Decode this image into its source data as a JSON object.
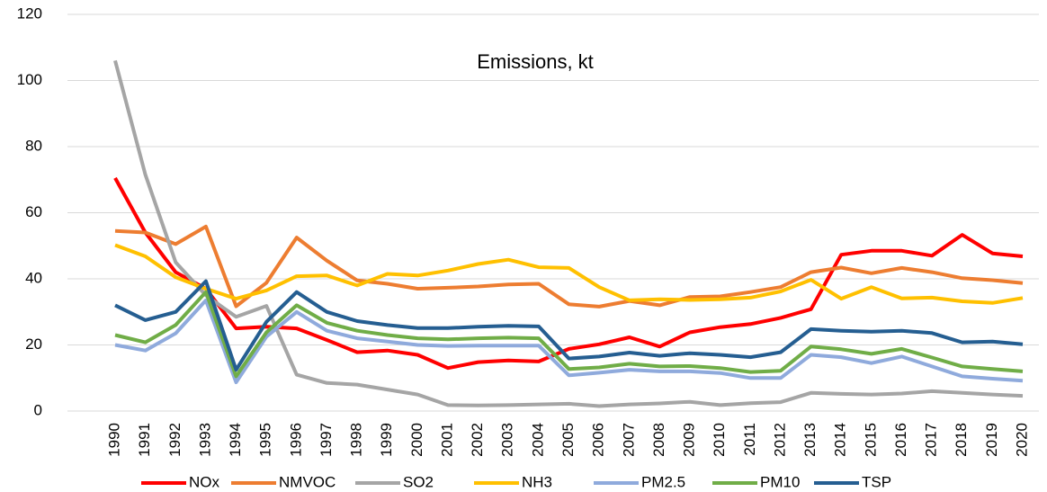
{
  "chart_data": {
    "type": "line",
    "title": "Emissions, kt",
    "categories": [
      "1990",
      "1991",
      "1992",
      "1993",
      "1994",
      "1995",
      "1996",
      "1997",
      "1998",
      "1999",
      "2000",
      "2001",
      "2002",
      "2003",
      "2004",
      "2005",
      "2006",
      "2007",
      "2008",
      "2009",
      "2010",
      "2011",
      "2012",
      "2013",
      "2014",
      "2015",
      "2016",
      "2017",
      "2018",
      "2019",
      "2020"
    ],
    "series": [
      {
        "name": "NOx",
        "color": "#ff0000",
        "values": [
          70.5,
          54,
          42,
          37,
          25,
          25.5,
          25,
          21.5,
          17.8,
          18.3,
          17,
          13,
          14.8,
          15.3,
          15,
          18.8,
          20.2,
          22.3,
          19.5,
          23.8,
          25.4,
          26.3,
          28.2,
          30.8,
          47.3,
          48.5,
          48.5,
          47,
          53.3,
          47.7,
          46.8
        ]
      },
      {
        "name": "NMVOC",
        "color": "#ed7d31",
        "values": [
          54.5,
          54,
          50.5,
          55.8,
          31.7,
          38.8,
          52.5,
          45.5,
          39.5,
          38.5,
          37,
          37.3,
          37.7,
          38.3,
          38.5,
          32.3,
          31.6,
          33.3,
          32,
          34.5,
          34.7,
          36,
          37.5,
          42,
          43.4,
          41.7,
          43.3,
          42,
          40.2,
          39.6,
          38.7
        ]
      },
      {
        "name": "SO2",
        "color": "#a5a5a5",
        "values": [
          106,
          71.5,
          45,
          35,
          28.5,
          31.8,
          11,
          8.5,
          8,
          6.5,
          5,
          1.8,
          1.7,
          1.8,
          2,
          2.2,
          1.5,
          2,
          2.3,
          2.8,
          1.8,
          2.4,
          2.7,
          5.5,
          5.2,
          5,
          5.3,
          6,
          5.5,
          5,
          4.6
        ]
      },
      {
        "name": "NH3",
        "color": "#ffc000",
        "values": [
          50.2,
          46.8,
          40.5,
          37,
          34,
          36.5,
          40.8,
          41,
          38,
          41.5,
          41,
          42.5,
          44.5,
          45.8,
          43.5,
          43.3,
          37.5,
          33.5,
          33.8,
          33.6,
          33.8,
          34.3,
          36.2,
          39.7,
          34,
          37.5,
          34.1,
          34.3,
          33.2,
          32.7,
          34.2
        ]
      },
      {
        "name": "PM2.5",
        "color": "#8faadc",
        "values": [
          20,
          18.3,
          23.5,
          33.5,
          8.7,
          22.5,
          30,
          24.3,
          22,
          21,
          20,
          19.7,
          19.8,
          19.8,
          19.8,
          10.8,
          11.6,
          12.5,
          12,
          12,
          11.5,
          10,
          10,
          17,
          16.3,
          14.5,
          16.5,
          13.5,
          10.5,
          9.8,
          9.2
        ]
      },
      {
        "name": "PM10",
        "color": "#70ad47",
        "values": [
          23,
          20.8,
          26,
          36,
          10.5,
          23.8,
          32,
          26.7,
          24.3,
          23,
          22,
          21.7,
          22,
          22.2,
          22,
          12.7,
          13.2,
          14.3,
          13.5,
          13.6,
          13,
          11.8,
          12.2,
          19.5,
          18.7,
          17.3,
          18.8,
          16.2,
          13.5,
          12.7,
          12
        ]
      },
      {
        "name": "TSP",
        "color": "#255e91",
        "values": [
          32,
          27.5,
          30,
          39.3,
          12.5,
          27,
          36,
          30,
          27.2,
          26,
          25.1,
          25.1,
          25.5,
          25.8,
          25.6,
          15.9,
          16.5,
          17.7,
          16.7,
          17.5,
          17,
          16.3,
          17.8,
          24.8,
          24.3,
          24,
          24.3,
          23.6,
          20.8,
          21,
          20.2
        ]
      }
    ],
    "ylim": [
      0,
      120
    ],
    "yticks": [
      0,
      20,
      40,
      60,
      80,
      100,
      120
    ],
    "grid": true,
    "legend": "bottom"
  }
}
